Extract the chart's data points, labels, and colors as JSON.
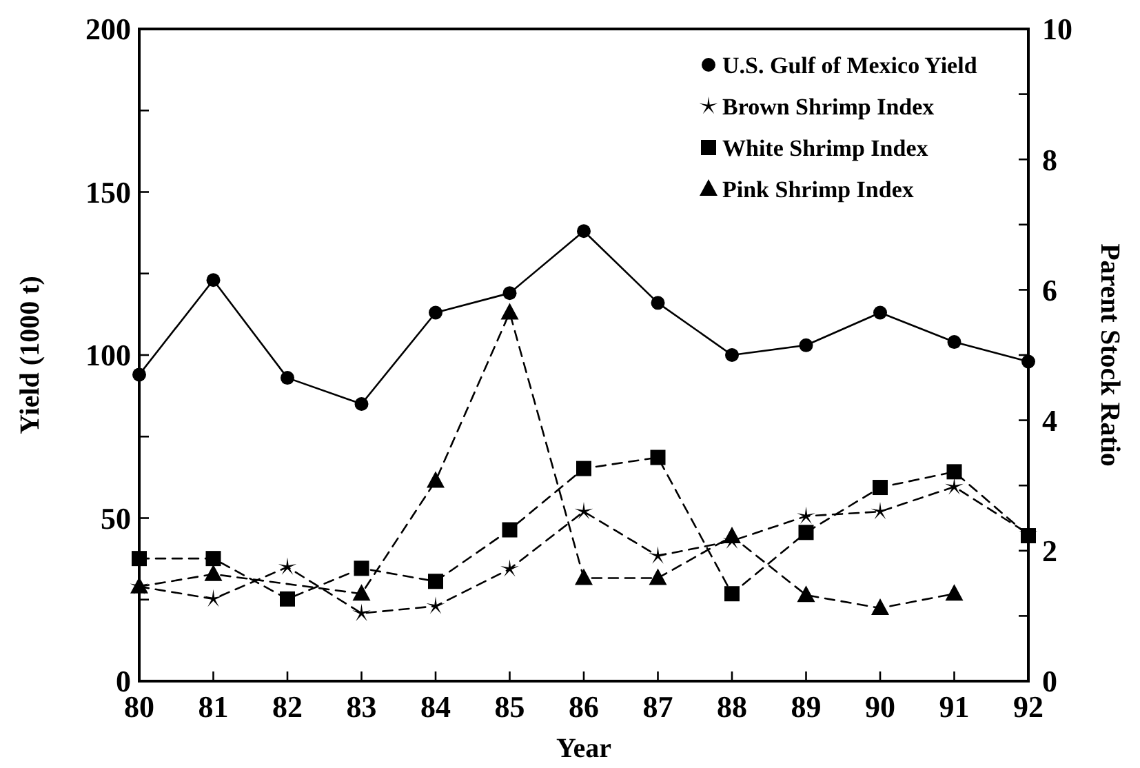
{
  "chart_data": {
    "type": "line",
    "xlabel": "Year",
    "ylabel": "Yield (1000 t)",
    "y2label": "Parent Stock Ratio",
    "x": [
      80,
      81,
      82,
      83,
      84,
      85,
      86,
      87,
      88,
      89,
      90,
      91,
      92
    ],
    "xlim": [
      80,
      92
    ],
    "xticks": [
      80,
      81,
      82,
      83,
      84,
      85,
      86,
      87,
      88,
      89,
      90,
      91,
      92
    ],
    "ylim": [
      0,
      200
    ],
    "yticks": [
      0,
      {
        "value": 25,
        "label": null
      },
      50,
      {
        "value": 75,
        "label": null
      },
      100,
      {
        "value": 125,
        "label": null
      },
      150,
      {
        "value": 175,
        "label": null
      },
      200
    ],
    "y2lim": [
      0,
      10
    ],
    "y2ticks": [
      0,
      {
        "value": 1,
        "label": null
      },
      2,
      {
        "value": 3,
        "label": null
      },
      4,
      {
        "value": 5,
        "label": null
      },
      6,
      {
        "value": 7,
        "label": null
      },
      8,
      {
        "value": 9,
        "label": null
      },
      10
    ],
    "legend": "top right",
    "grid": false,
    "series": [
      {
        "name": "U.S. Gulf of Mexico Yield",
        "color": "#000000",
        "marker": "circle",
        "line_style": "solid",
        "values": [
          94,
          123,
          93,
          85,
          113,
          119,
          138,
          116,
          100,
          103,
          113,
          104,
          98
        ]
      },
      {
        "name": "Brown Shrimp Index",
        "color": "#000000",
        "marker": "star",
        "line_style": "dashed",
        "axis": "y2",
        "values": [
          1.45,
          1.26,
          1.75,
          1.04,
          1.15,
          1.72,
          2.6,
          1.92,
          2.15,
          2.53,
          2.6,
          2.98,
          2.26
        ]
      },
      {
        "name": "White Shrimp Index",
        "color": "#000000",
        "marker": "square",
        "line_style": "dashed",
        "axis": "y2",
        "values": [
          1.88,
          1.88,
          1.26,
          1.73,
          1.53,
          2.32,
          3.26,
          3.43,
          1.34,
          2.28,
          2.97,
          3.21,
          2.23
        ]
      },
      {
        "name": "Pink Shrimp Index",
        "color": "#000000",
        "marker": "triangle",
        "line_style": "dashed",
        "axis": "y2",
        "values": [
          1.45,
          1.64,
          null,
          1.34,
          3.07,
          5.65,
          1.58,
          1.58,
          2.22,
          1.32,
          1.12,
          1.34,
          null
        ]
      }
    ]
  }
}
